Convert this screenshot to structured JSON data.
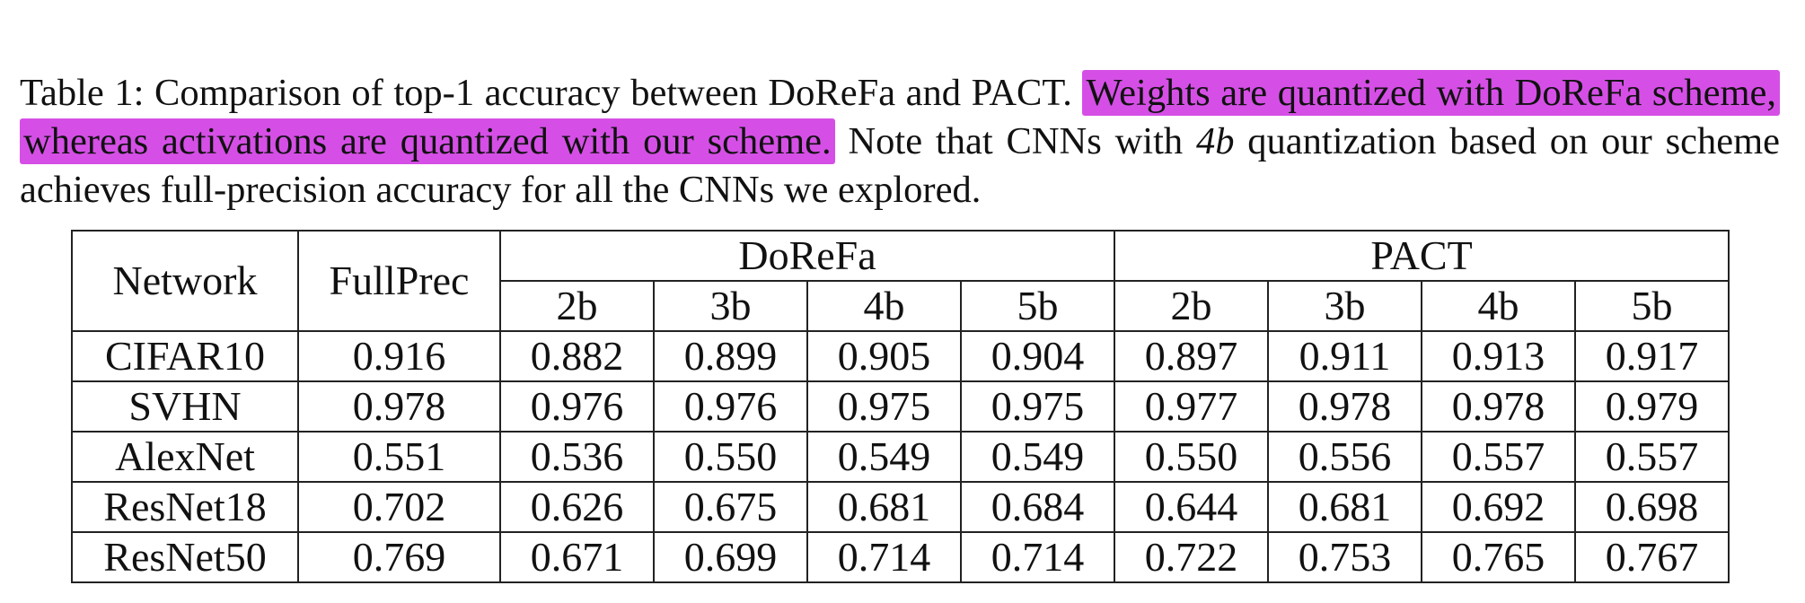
{
  "caption": {
    "prefix": "Table 1: Comparison of top-1 accuracy between DoReFa and PACT.",
    "highlight": "Weights are quantized with DoReFa scheme, whereas activations are quantized with our scheme.",
    "text_before_math": "Note that CNNs with",
    "math": "4b",
    "text_after_math": "quantization based on our scheme achieves full-precision accuracy for all the CNNs we explored."
  },
  "table": {
    "header": {
      "network": "Network",
      "fullprec": "FullPrec",
      "group1": "DoReFa",
      "group2": "PACT",
      "bits": [
        "2b",
        "3b",
        "4b",
        "5b"
      ]
    },
    "rows": [
      {
        "network": "CIFAR10",
        "fullprec": "0.916",
        "dorefa": [
          "0.882",
          "0.899",
          "0.905",
          "0.904"
        ],
        "pact": [
          "0.897",
          "0.911",
          "0.913",
          "0.917"
        ]
      },
      {
        "network": "SVHN",
        "fullprec": "0.978",
        "dorefa": [
          "0.976",
          "0.976",
          "0.975",
          "0.975"
        ],
        "pact": [
          "0.977",
          "0.978",
          "0.978",
          "0.979"
        ]
      },
      {
        "network": "AlexNet",
        "fullprec": "0.551",
        "dorefa": [
          "0.536",
          "0.550",
          "0.549",
          "0.549"
        ],
        "pact": [
          "0.550",
          "0.556",
          "0.557",
          "0.557"
        ]
      },
      {
        "network": "ResNet18",
        "fullprec": "0.702",
        "dorefa": [
          "0.626",
          "0.675",
          "0.681",
          "0.684"
        ],
        "pact": [
          "0.644",
          "0.681",
          "0.692",
          "0.698"
        ]
      },
      {
        "network": "ResNet50",
        "fullprec": "0.769",
        "dorefa": [
          "0.671",
          "0.699",
          "0.714",
          "0.714"
        ],
        "pact": [
          "0.722",
          "0.753",
          "0.765",
          "0.767"
        ]
      }
    ]
  },
  "colors": {
    "highlight": "#d54fe6",
    "text": "#111111",
    "rule": "#222222"
  }
}
